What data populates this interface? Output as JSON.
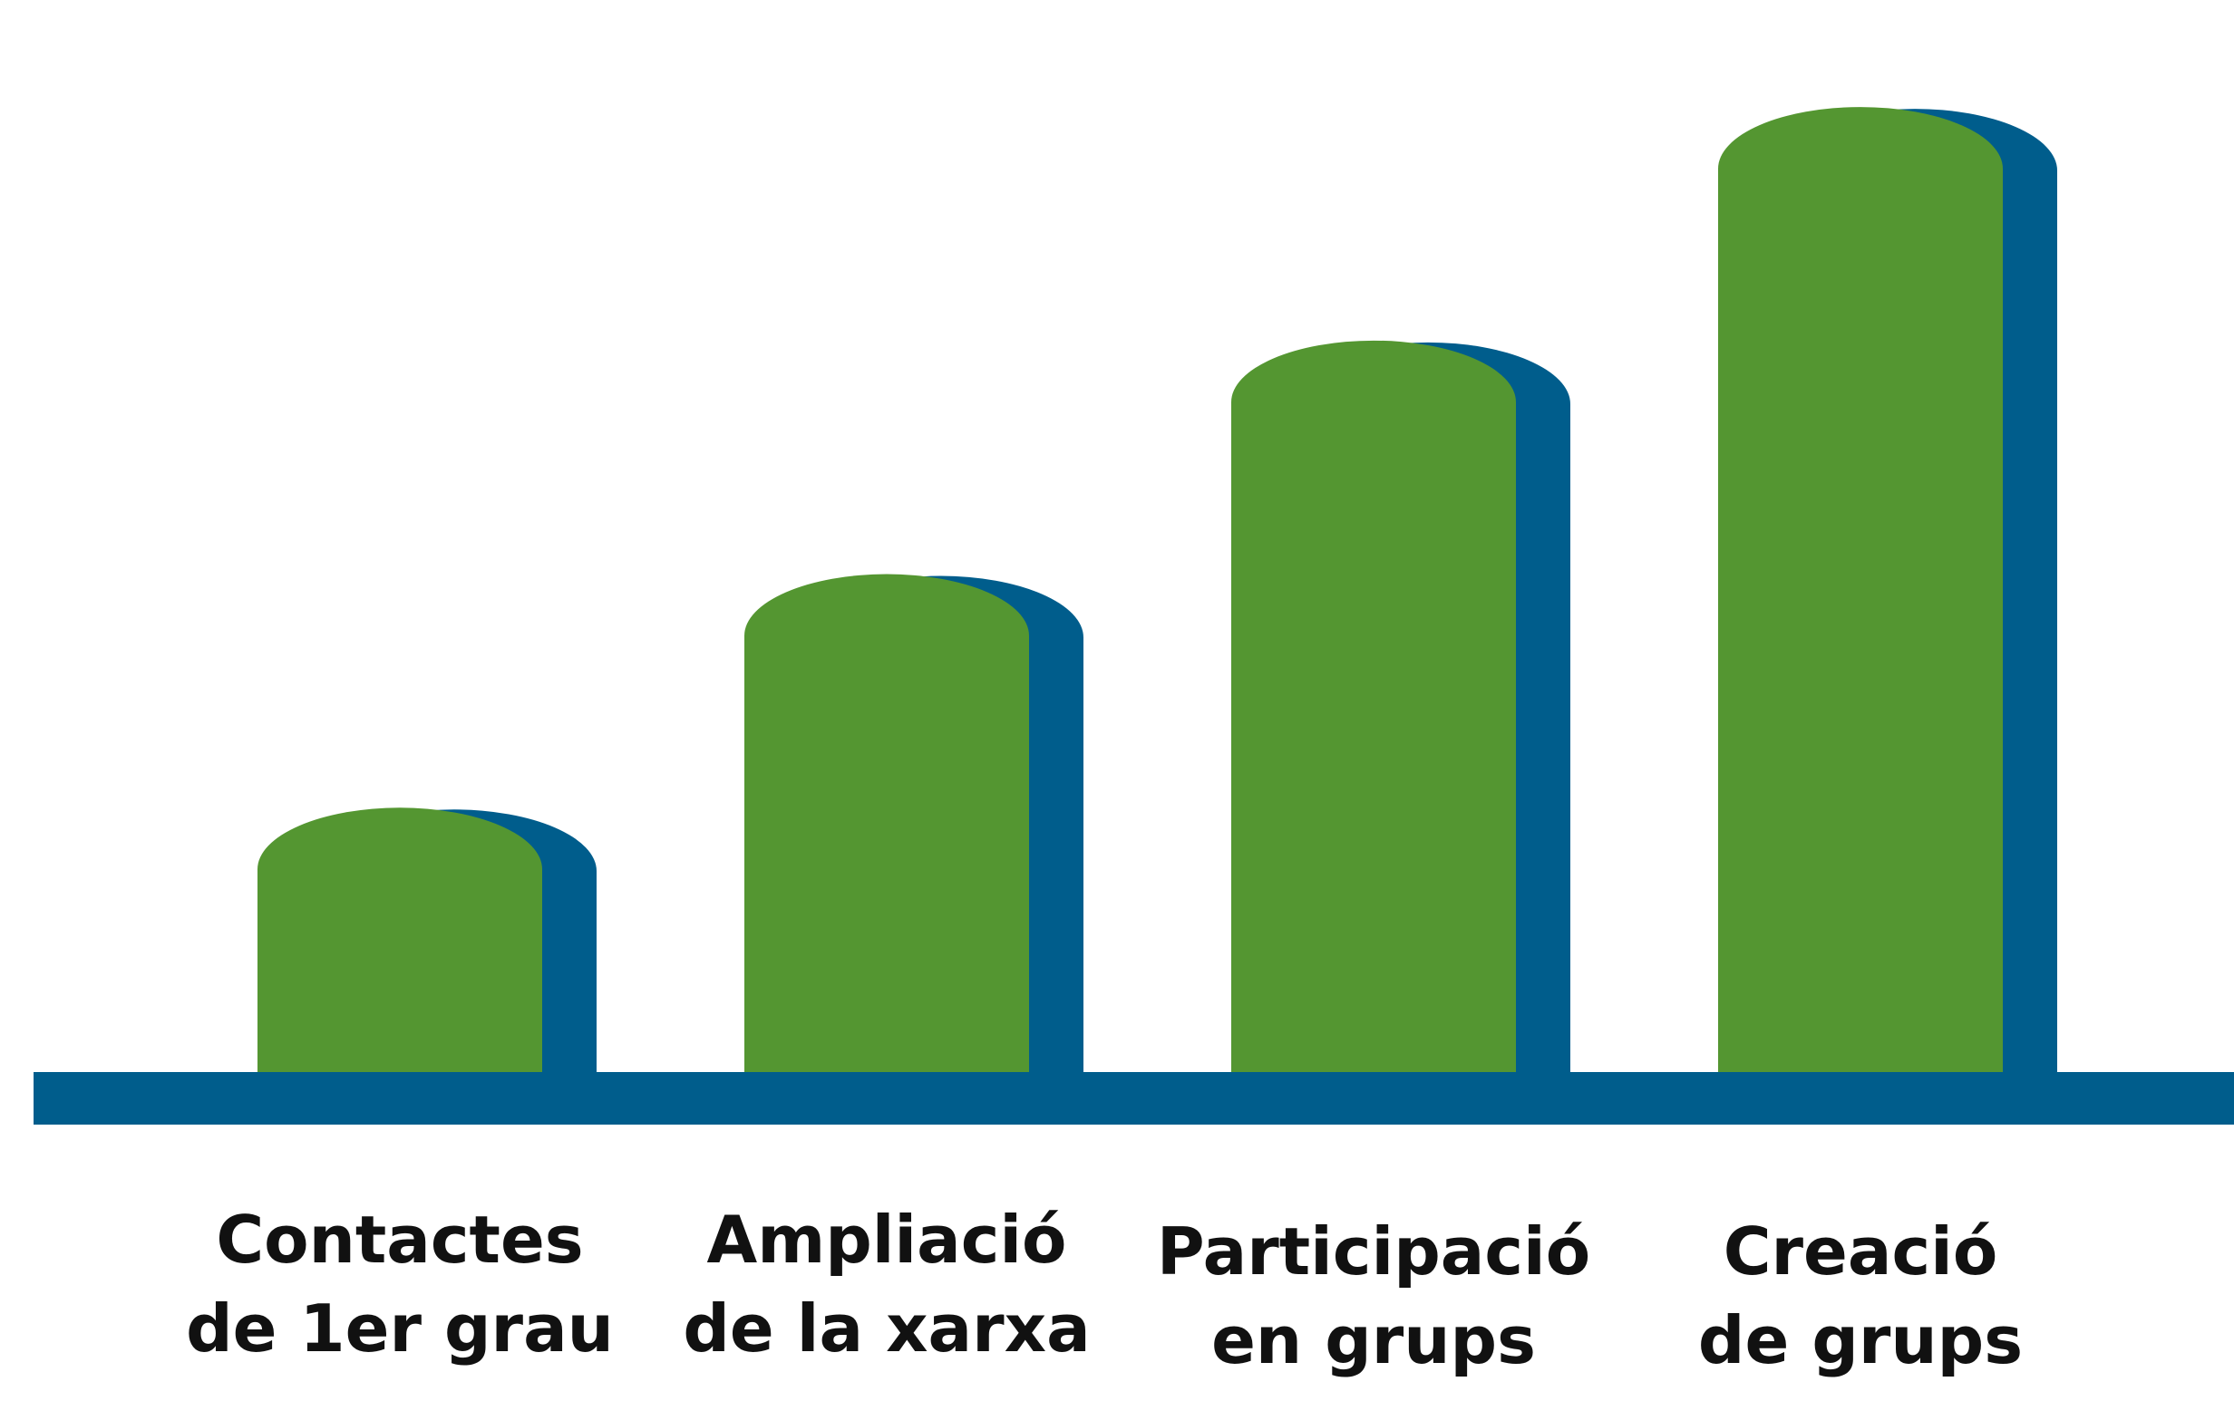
{
  "chart_data": {
    "type": "bar",
    "title": "",
    "xlabel": "",
    "ylabel": "",
    "categories": [
      [
        "Contactes",
        "de 1er grau"
      ],
      [
        "Ampliació",
        "de la xarxa"
      ],
      [
        "Participació",
        "en grups"
      ],
      [
        "Creació",
        "de grups"
      ]
    ],
    "values": [
      1,
      2,
      3,
      4
    ],
    "ylim": [
      0,
      4.4
    ],
    "grid": false,
    "legend": "none",
    "colors": {
      "bar_front": "#549631",
      "bar_shadow": "#005d8c",
      "baseline": "#005d8c",
      "label": "#111111"
    }
  }
}
